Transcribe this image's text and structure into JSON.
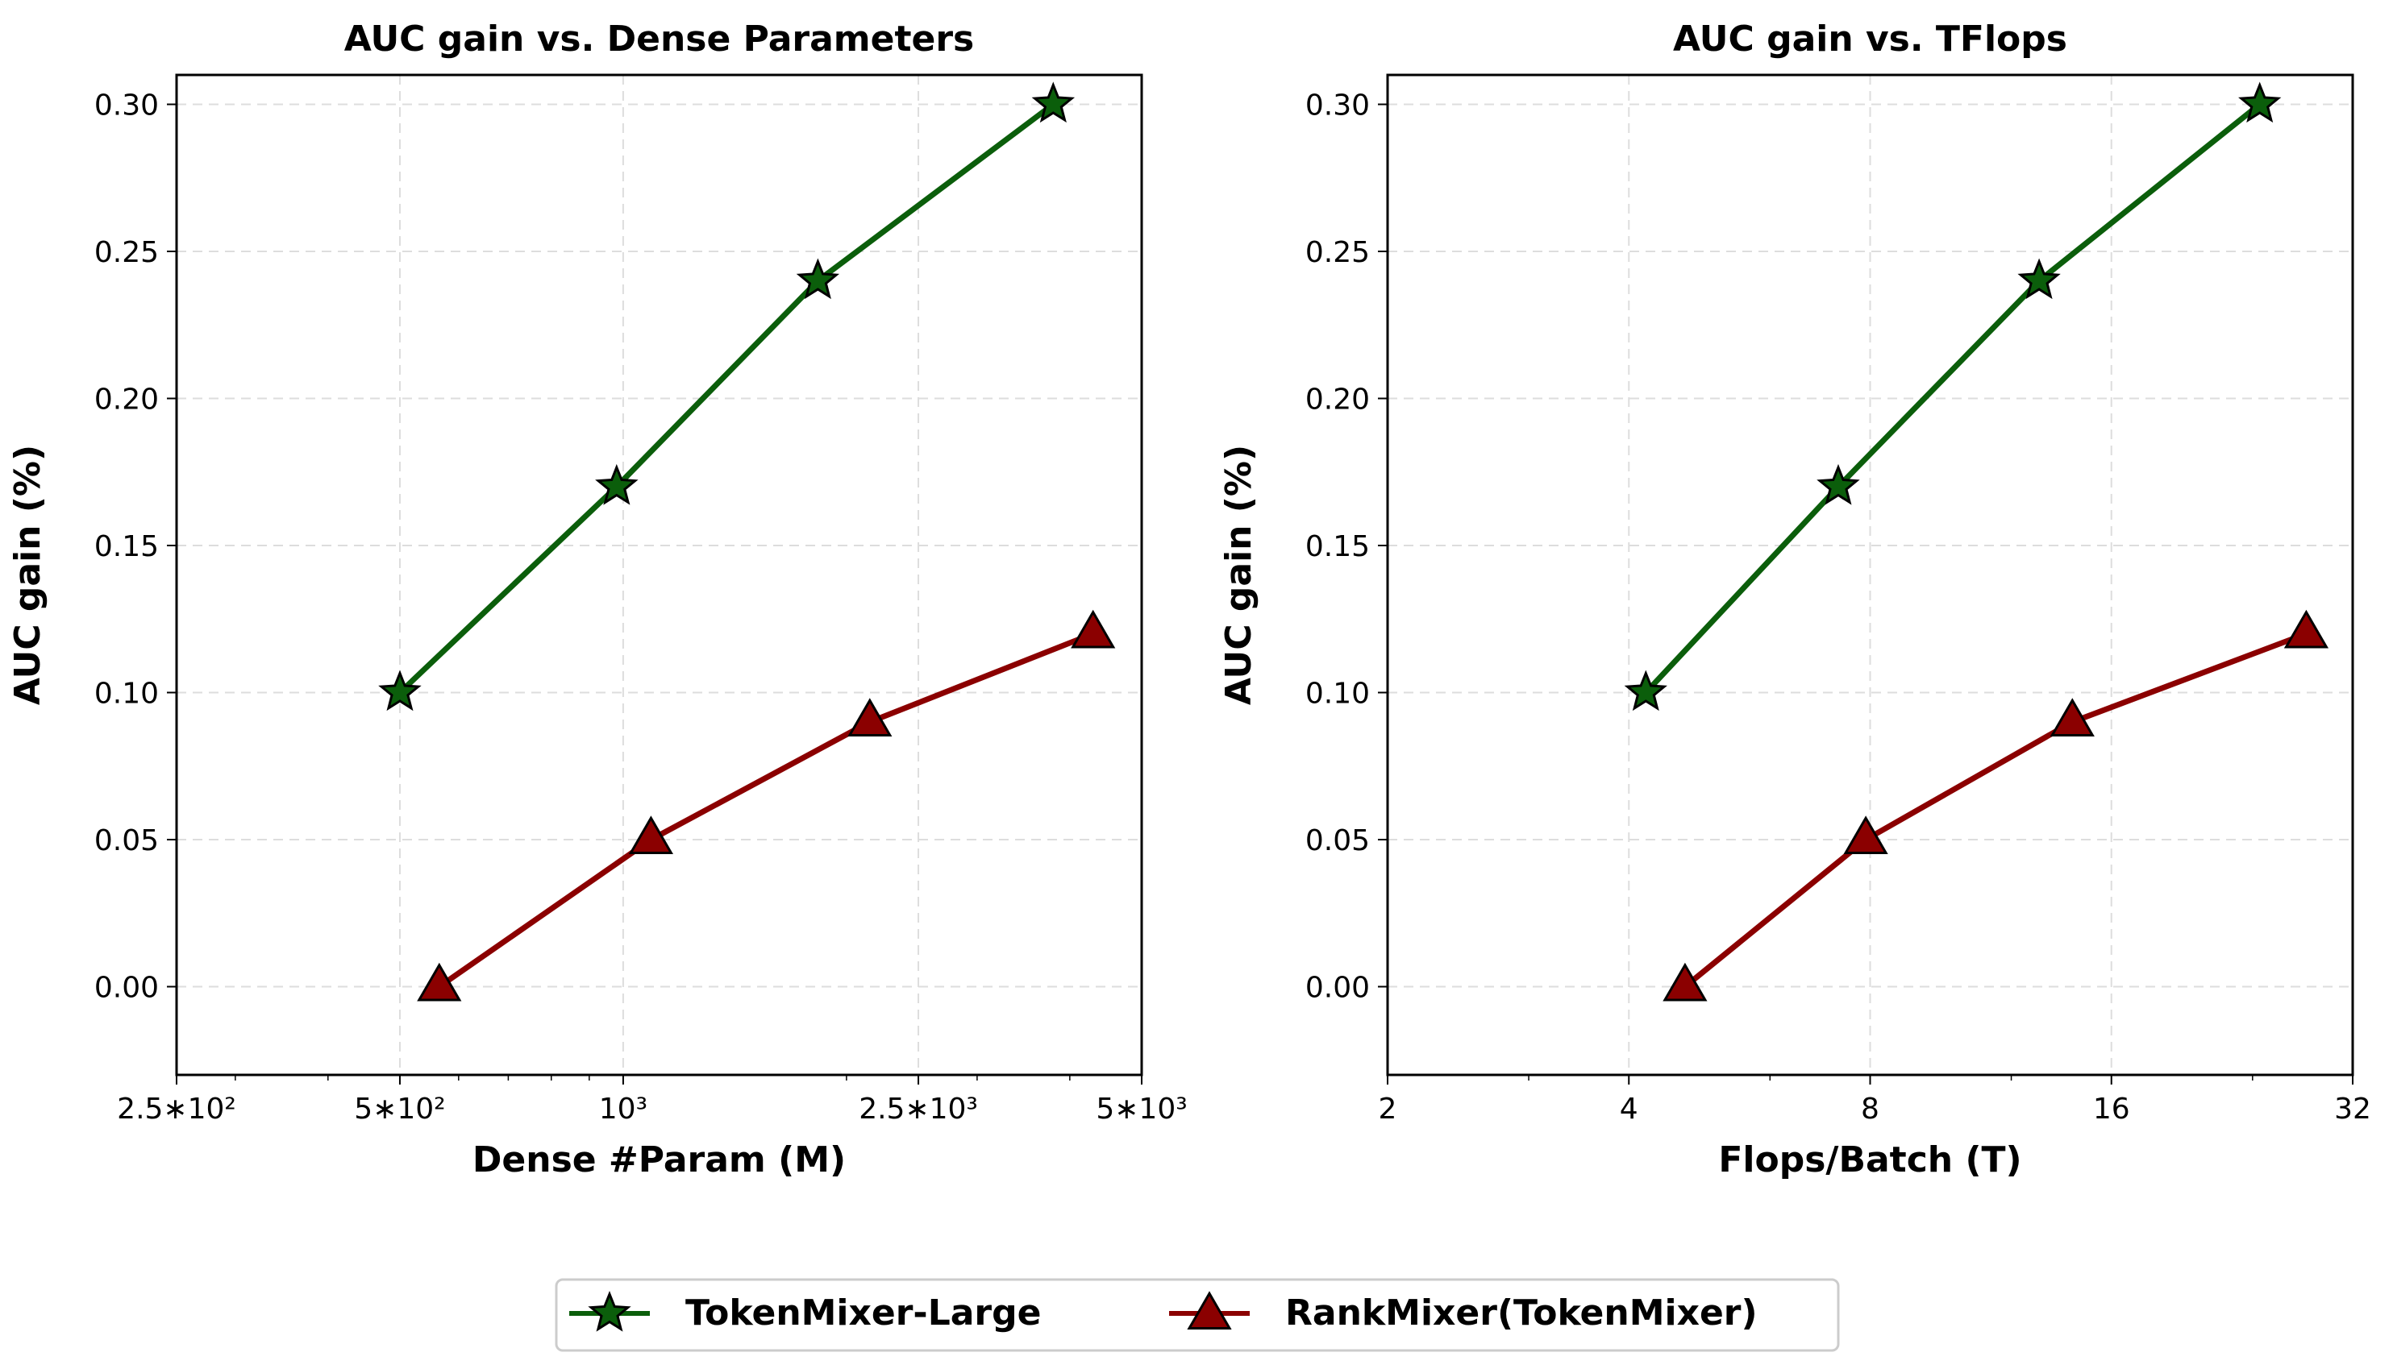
{
  "chart_data": [
    {
      "type": "line",
      "title": "AUC gain vs. Dense Parameters",
      "xlabel": "Dense #Param (M)",
      "ylabel": "AUC gain (%)",
      "xscale": "log",
      "xlim": [
        250,
        5000
      ],
      "ylim": [
        -0.03,
        0.31
      ],
      "xticks": [
        {
          "value": 250,
          "label": "2.5∗10²"
        },
        {
          "value": 500,
          "label": "5∗10²"
        },
        {
          "value": 1000,
          "label": "10³"
        },
        {
          "value": 2500,
          "label": "2.5∗10³"
        },
        {
          "value": 5000,
          "label": "5∗10³"
        }
      ],
      "yticks": [
        {
          "value": 0.0,
          "label": "0.00"
        },
        {
          "value": 0.05,
          "label": "0.05"
        },
        {
          "value": 0.1,
          "label": "0.10"
        },
        {
          "value": 0.15,
          "label": "0.15"
        },
        {
          "value": 0.2,
          "label": "0.20"
        },
        {
          "value": 0.25,
          "label": "0.25"
        },
        {
          "value": 0.3,
          "label": "0.30"
        }
      ],
      "grid": true,
      "series": [
        {
          "name": "TokenMixer-Large",
          "color": "#0b5e0b",
          "marker": "star",
          "x": [
            500,
            980,
            1830,
            3800
          ],
          "y": [
            0.1,
            0.17,
            0.24,
            0.3
          ]
        },
        {
          "name": "RankMixer(TokenMixer)",
          "color": "#8b0000",
          "marker": "triangle",
          "x": [
            565,
            1090,
            2150,
            4300
          ],
          "y": [
            0.0,
            0.05,
            0.09,
            0.12
          ]
        }
      ]
    },
    {
      "type": "line",
      "title": "AUC gain vs. TFlops",
      "xlabel": "Flops/Batch (T)",
      "ylabel": "AUC gain (%)",
      "xscale": "log2",
      "xlim": [
        2,
        32
      ],
      "ylim": [
        -0.03,
        0.31
      ],
      "xticks": [
        {
          "value": 2,
          "label": "2"
        },
        {
          "value": 4,
          "label": "4"
        },
        {
          "value": 8,
          "label": "8"
        },
        {
          "value": 16,
          "label": "16"
        },
        {
          "value": 32,
          "label": "32"
        }
      ],
      "yticks": [
        {
          "value": 0.0,
          "label": "0.00"
        },
        {
          "value": 0.05,
          "label": "0.05"
        },
        {
          "value": 0.1,
          "label": "0.10"
        },
        {
          "value": 0.15,
          "label": "0.15"
        },
        {
          "value": 0.2,
          "label": "0.20"
        },
        {
          "value": 0.25,
          "label": "0.25"
        },
        {
          "value": 0.3,
          "label": "0.30"
        }
      ],
      "grid": true,
      "series": [
        {
          "name": "TokenMixer-Large",
          "color": "#0b5e0b",
          "marker": "star",
          "x": [
            4.2,
            7.3,
            13.0,
            24.5
          ],
          "y": [
            0.1,
            0.17,
            0.24,
            0.3
          ]
        },
        {
          "name": "RankMixer(TokenMixer)",
          "color": "#8b0000",
          "marker": "triangle",
          "x": [
            4.7,
            7.9,
            14.3,
            28.0
          ],
          "y": [
            0.0,
            0.05,
            0.09,
            0.12
          ]
        }
      ]
    }
  ],
  "legend": {
    "position": "bottom-center",
    "items": [
      {
        "label": "TokenMixer-Large",
        "color": "#0b5e0b",
        "marker": "star"
      },
      {
        "label": "RankMixer(TokenMixer)",
        "color": "#8b0000",
        "marker": "triangle"
      }
    ]
  }
}
